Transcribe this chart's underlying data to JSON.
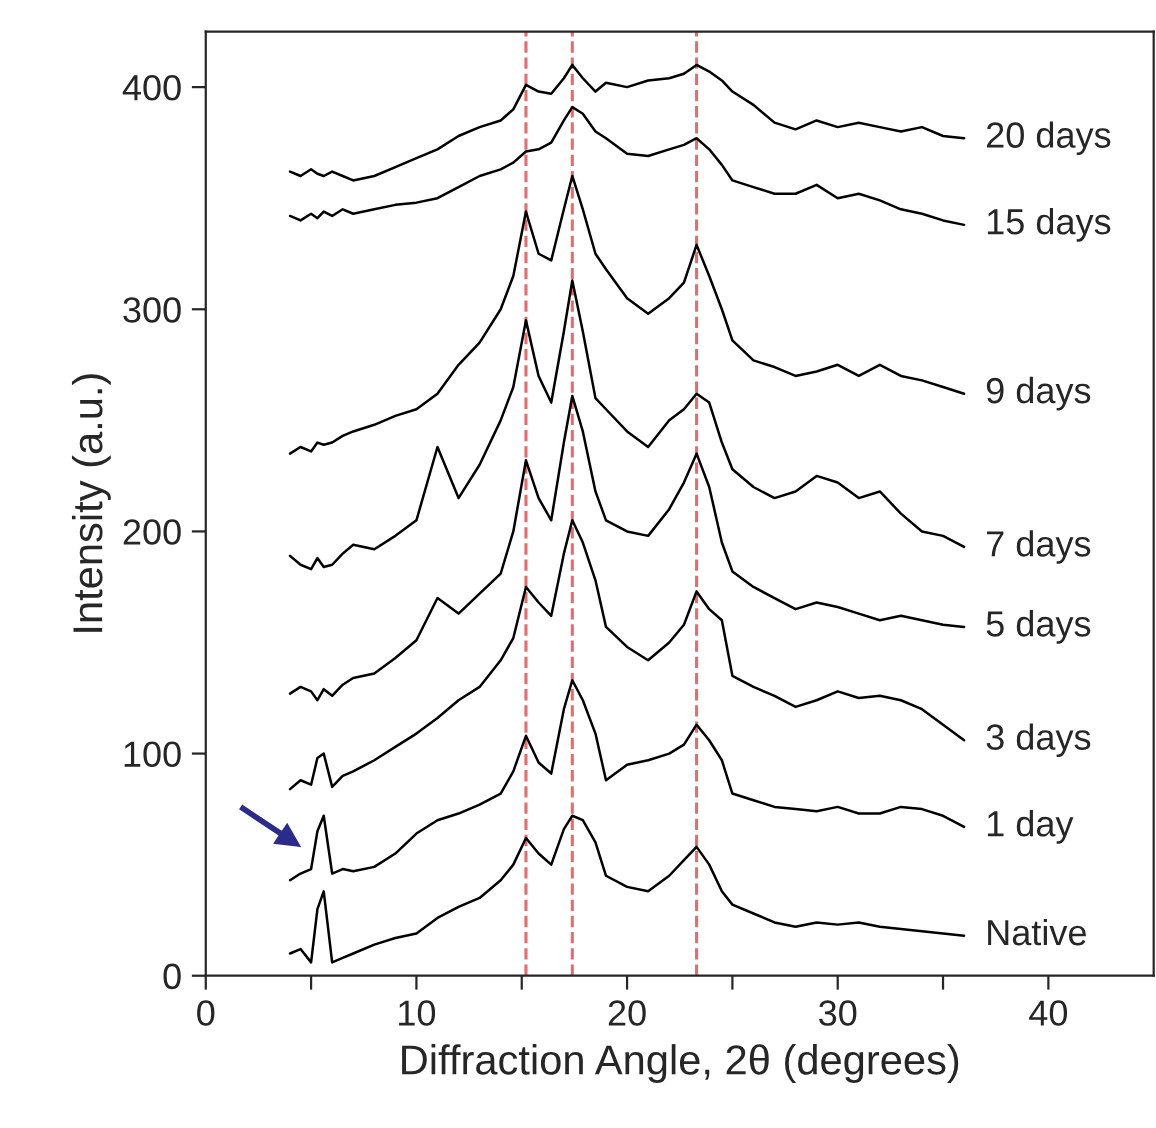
{
  "chart_data": {
    "type": "line",
    "xlabel": "Diffraction Angle, 2θ (degrees)",
    "ylabel": "Intensity (a.u.)",
    "x": [
      4,
      4.5,
      5,
      5.3,
      5.6,
      6,
      6.5,
      7,
      8,
      9,
      10,
      11,
      12,
      13,
      14,
      14.6,
      15.2,
      15.8,
      16.4,
      17,
      17.4,
      17.9,
      18.5,
      19,
      20,
      21,
      22,
      22.7,
      23.3,
      23.9,
      24.5,
      25,
      26,
      27,
      28,
      29,
      30,
      31,
      32,
      33,
      34,
      35,
      36
    ],
    "series": [
      {
        "name": "Native",
        "color": "#000000",
        "values": [
          10,
          12,
          6,
          30,
          38,
          6,
          8,
          10,
          14,
          17,
          19,
          26,
          31,
          35,
          43,
          50,
          62,
          55,
          50,
          66,
          72,
          70,
          60,
          45,
          40,
          38,
          45,
          52,
          58,
          50,
          38,
          32,
          28,
          24,
          22,
          24,
          23,
          24,
          22,
          21,
          20,
          19,
          18
        ]
      },
      {
        "name": "1 day",
        "color": "#000000",
        "values": [
          43,
          46,
          48,
          65,
          72,
          46,
          48,
          47,
          49,
          55,
          64,
          70,
          73,
          77,
          82,
          92,
          108,
          96,
          91,
          120,
          133,
          124,
          109,
          88,
          95,
          97,
          100,
          104,
          113,
          106,
          97,
          82,
          79,
          76,
          75,
          74,
          76,
          73,
          73,
          76,
          75,
          72,
          67
        ]
      },
      {
        "name": "3 days",
        "color": "#000000",
        "values": [
          84,
          88,
          86,
          98,
          100,
          85,
          90,
          92,
          97,
          103,
          109,
          116,
          124,
          130,
          142,
          152,
          175,
          168,
          162,
          190,
          205,
          195,
          178,
          157,
          148,
          142,
          150,
          158,
          173,
          165,
          160,
          135,
          130,
          126,
          121,
          124,
          128,
          125,
          126,
          124,
          120,
          113,
          106
        ]
      },
      {
        "name": "5 days",
        "color": "#000000",
        "values": [
          127,
          130,
          128,
          124,
          129,
          126,
          131,
          134,
          136,
          143,
          151,
          170,
          163,
          172,
          181,
          200,
          232,
          215,
          205,
          240,
          261,
          245,
          218,
          205,
          200,
          198,
          210,
          222,
          235,
          220,
          195,
          182,
          175,
          170,
          165,
          168,
          166,
          163,
          160,
          162,
          160,
          158,
          157
        ]
      },
      {
        "name": "7 days",
        "color": "#000000",
        "values": [
          189,
          185,
          183,
          188,
          184,
          185,
          190,
          194,
          192,
          198,
          205,
          238,
          215,
          230,
          250,
          265,
          295,
          270,
          258,
          290,
          313,
          290,
          260,
          255,
          245,
          238,
          250,
          255,
          262,
          258,
          240,
          228,
          220,
          215,
          218,
          225,
          222,
          215,
          218,
          208,
          200,
          198,
          193
        ]
      },
      {
        "name": "9 days",
        "color": "#000000",
        "values": [
          235,
          238,
          236,
          240,
          239,
          240,
          243,
          245,
          248,
          252,
          255,
          262,
          275,
          285,
          300,
          315,
          344,
          325,
          322,
          345,
          360,
          345,
          325,
          318,
          305,
          298,
          305,
          312,
          329,
          315,
          300,
          286,
          277,
          274,
          270,
          272,
          275,
          270,
          275,
          270,
          268,
          265,
          262
        ]
      },
      {
        "name": "15 days",
        "color": "#000000",
        "values": [
          342,
          340,
          343,
          341,
          344,
          342,
          345,
          343,
          345,
          347,
          348,
          350,
          355,
          360,
          363,
          366,
          371,
          372,
          375,
          385,
          391,
          388,
          380,
          377,
          370,
          369,
          372,
          374,
          377,
          372,
          365,
          358,
          355,
          352,
          352,
          356,
          350,
          352,
          349,
          345,
          343,
          340,
          338
        ]
      },
      {
        "name": "20 days",
        "color": "#000000",
        "values": [
          362,
          360,
          363,
          361,
          360,
          362,
          360,
          358,
          360,
          364,
          368,
          372,
          378,
          382,
          385,
          390,
          401,
          398,
          397,
          404,
          410,
          404,
          398,
          402,
          400,
          403,
          404,
          406,
          410,
          407,
          403,
          398,
          392,
          384,
          381,
          385,
          382,
          384,
          382,
          380,
          382,
          378,
          377
        ]
      }
    ],
    "xlim": [
      0,
      45
    ],
    "xticks": [
      0,
      {
        "value": 5,
        "label": null
      },
      10,
      {
        "value": 15,
        "label": null
      },
      20,
      {
        "value": 25,
        "label": null
      },
      30,
      {
        "value": 35,
        "label": null
      },
      40
    ],
    "ylim": [
      0,
      425
    ],
    "yticks": [
      0,
      100,
      200,
      300,
      400
    ],
    "ref_lines": [
      {
        "axis": "x",
        "value": 15.2,
        "color": "#e86a6a",
        "line_style": "dashed"
      },
      {
        "axis": "x",
        "value": 17.4,
        "color": "#e86a6a",
        "line_style": "dashed"
      },
      {
        "axis": "x",
        "value": 23.3,
        "color": "#e86a6a",
        "line_style": "dashed"
      }
    ],
    "grid": false,
    "legend": false
  }
}
